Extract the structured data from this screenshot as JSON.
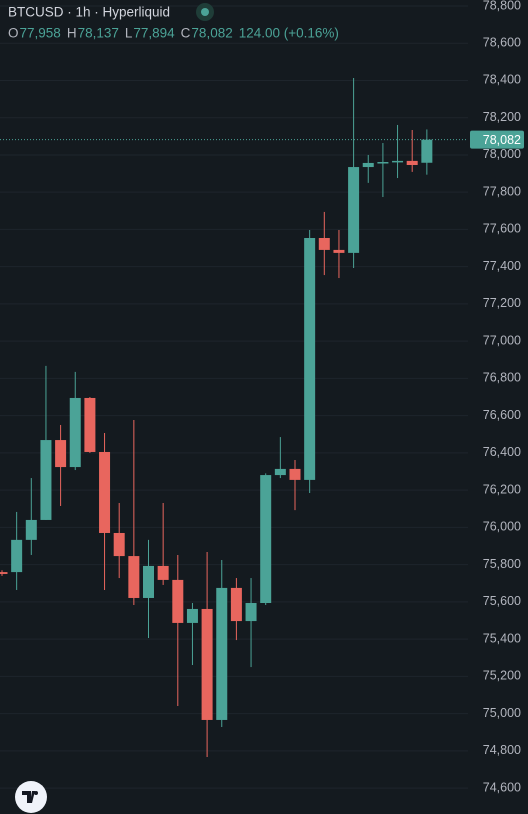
{
  "header": {
    "symbol": "BTCUSD · 1h · Hyperliquid",
    "ohlc": [
      {
        "key": "O",
        "value": "77,958"
      },
      {
        "key": "H",
        "value": "78,137"
      },
      {
        "key": "L",
        "value": "77,894"
      },
      {
        "key": "C",
        "value": "78,082"
      }
    ],
    "change": "124.00 (+0.16%)"
  },
  "chart_data": {
    "type": "candlestick",
    "up_color": "#4ba397",
    "down_color": "#e8665e",
    "grid": true,
    "ylim": [
      74461,
      78832
    ],
    "yticks": [
      {
        "value": 78800,
        "label": "78,800"
      },
      {
        "value": 78600,
        "label": "78,600"
      },
      {
        "value": 78400,
        "label": "78,400"
      },
      {
        "value": 78200,
        "label": "78,200"
      },
      {
        "value": 78000,
        "label": "78,000"
      },
      {
        "value": 77800,
        "label": "77,800"
      },
      {
        "value": 77600,
        "label": "77,600"
      },
      {
        "value": 77400,
        "label": "77,400"
      },
      {
        "value": 77200,
        "label": "77,200"
      },
      {
        "value": 77000,
        "label": "77,000"
      },
      {
        "value": 76800,
        "label": "76,800"
      },
      {
        "value": 76600,
        "label": "76,600"
      },
      {
        "value": 76400,
        "label": "76,400"
      },
      {
        "value": 76200,
        "label": "76,200"
      },
      {
        "value": 76000,
        "label": "76,000"
      },
      {
        "value": 75800,
        "label": "75,800"
      },
      {
        "value": 75600,
        "label": "75,600"
      },
      {
        "value": 75400,
        "label": "75,400"
      },
      {
        "value": 75200,
        "label": "75,200"
      },
      {
        "value": 75000,
        "label": "75,000"
      },
      {
        "value": 74800,
        "label": "74,800"
      },
      {
        "value": 74600,
        "label": "74,600"
      }
    ],
    "price_line": {
      "value": 78082,
      "label": "78,082"
    },
    "open": [
      75760,
      75760,
      75933,
      76040,
      76469,
      76324,
      76695,
      76405,
      75970,
      75846,
      75621,
      75793,
      75718,
      75487,
      75562,
      74966,
      75675,
      75497,
      75594,
      76281,
      76314,
      76255,
      77554,
      77490,
      77474,
      77935,
      77957,
      77962,
      77968,
      77958
    ],
    "high": [
      75770,
      76083,
      76265,
      76867,
      76550,
      76835,
      76700,
      76507,
      76131,
      76577,
      75933,
      76131,
      75852,
      75594,
      75868,
      75825,
      75728,
      75728,
      76290,
      76485,
      76362,
      77597,
      77694,
      77597,
      78413,
      78000,
      78064,
      78161,
      78134,
      78137
    ],
    "low": [
      75740,
      75664,
      75852,
      76040,
      76115,
      76308,
      76400,
      75664,
      75728,
      75583,
      75406,
      75691,
      75041,
      75261,
      74767,
      74928,
      75395,
      75250,
      75583,
      76265,
      76093,
      76185,
      77355,
      77339,
      77393,
      77850,
      77774,
      77876,
      77909,
      77894
    ],
    "close": [
      75750,
      75933,
      76040,
      76469,
      76324,
      76695,
      76405,
      75970,
      75846,
      75621,
      75793,
      75718,
      75487,
      75562,
      74966,
      75675,
      75497,
      75594,
      76281,
      76314,
      76255,
      77554,
      77490,
      77474,
      77935,
      77957,
      77962,
      77968,
      77946,
      78082
    ]
  }
}
